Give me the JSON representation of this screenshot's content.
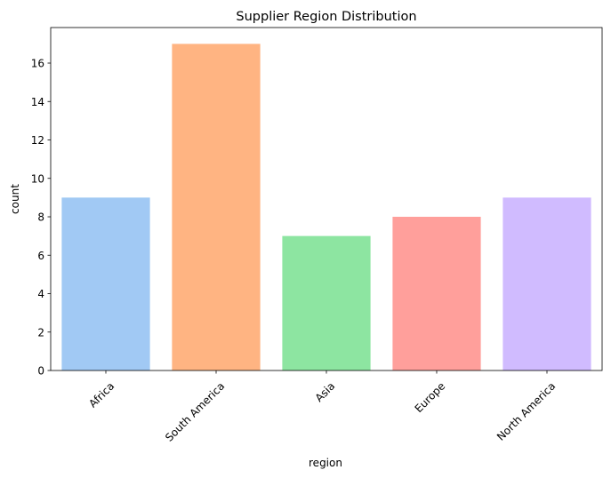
{
  "chart_data": {
    "type": "bar",
    "title": "Supplier Region Distribution",
    "xlabel": "region",
    "ylabel": "count",
    "categories": [
      "Africa",
      "South America",
      "Asia",
      "Europe",
      "North America"
    ],
    "values": [
      9,
      17,
      7,
      8,
      9
    ],
    "colors": [
      "#a1c9f4",
      "#ffb482",
      "#8de5a1",
      "#ff9f9b",
      "#d0bbff"
    ],
    "ylim": [
      0,
      17.85
    ],
    "yticks": [
      0,
      2,
      4,
      6,
      8,
      10,
      12,
      14,
      16
    ],
    "grid": false,
    "legend": "none"
  }
}
